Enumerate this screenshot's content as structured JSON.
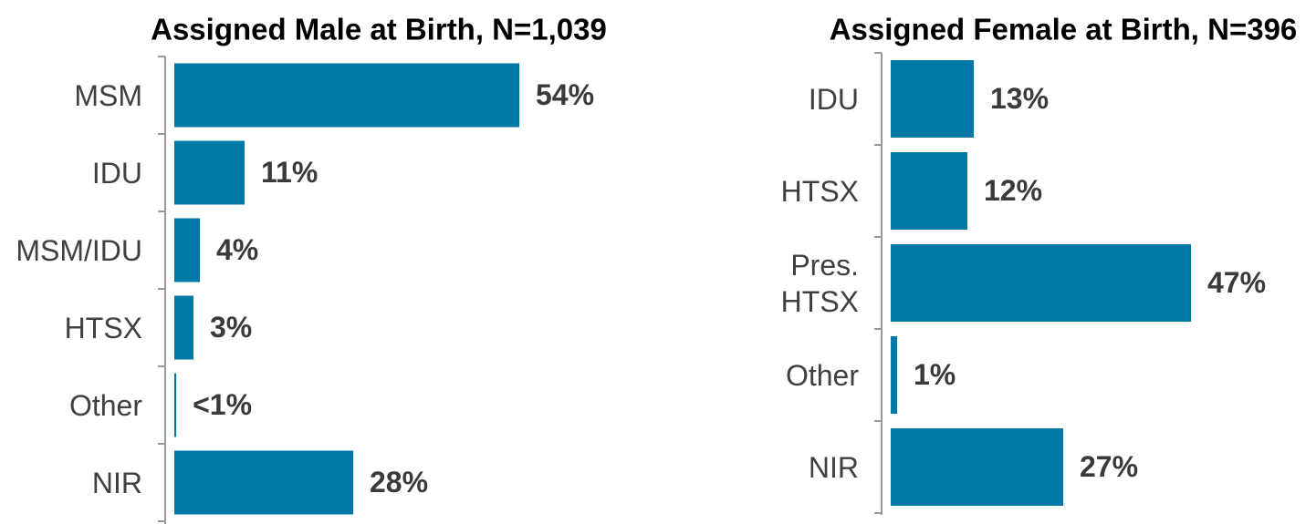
{
  "chart_data": [
    {
      "type": "bar",
      "orientation": "horizontal",
      "title": "Assigned Male at Birth, N=1,039",
      "color": "#0078a5",
      "categories": [
        "MSM",
        "IDU",
        "MSM/IDU",
        "HTSX",
        "Other",
        "NIR"
      ],
      "values": [
        54,
        11,
        4,
        3,
        0.3,
        28
      ],
      "value_labels": [
        "54%",
        "11%",
        "4%",
        "3%",
        "<1%",
        "28%"
      ]
    },
    {
      "type": "bar",
      "orientation": "horizontal",
      "title": "Assigned Female at Birth, N=396",
      "color": "#0078a5",
      "categories": [
        "IDU",
        "HTSX",
        "Pres. HTSX",
        "Other",
        "NIR"
      ],
      "values": [
        13,
        12,
        47,
        1,
        27
      ],
      "value_labels": [
        "13%",
        "12%",
        "47%",
        "1%",
        "27%"
      ]
    }
  ]
}
